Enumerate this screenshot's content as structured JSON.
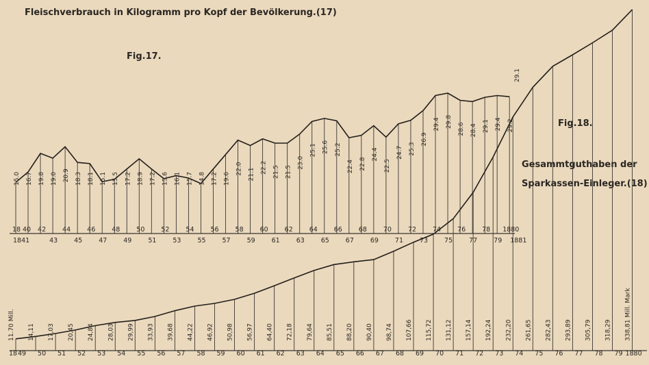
{
  "chart_data": [
    {
      "type": "line",
      "figure_label": "Fig.17.",
      "title": "Fleischverbrauch in Kilogramm pro Kopf der Bevölkerung.(17)",
      "x": [
        1840,
        1841,
        1842,
        1843,
        1844,
        1845,
        1846,
        1847,
        1848,
        1849,
        1850,
        1851,
        1852,
        1853,
        1854,
        1855,
        1856,
        1857,
        1858,
        1859,
        1860,
        1861,
        1862,
        1863,
        1864,
        1865,
        1866,
        1867,
        1868,
        1869,
        1870,
        1871,
        1872,
        1873,
        1874,
        1875,
        1876,
        1877,
        1878,
        1879,
        1880
      ],
      "values": [
        15.0,
        16.7,
        19.8,
        19.0,
        20.9,
        18.3,
        18.1,
        15.1,
        15.5,
        17.2,
        18.9,
        17.2,
        15.6,
        16.1,
        15.7,
        14.8,
        17.2,
        19.6,
        22.0,
        21.1,
        22.2,
        21.5,
        21.5,
        23.0,
        25.1,
        25.6,
        25.2,
        22.4,
        22.8,
        24.4,
        22.5,
        24.7,
        25.3,
        26.9,
        29.4,
        29.8,
        28.6,
        28.4,
        29.1,
        29.4,
        29.2
      ],
      "value_labels": [
        "15.0",
        "16.7",
        "19.8",
        "19.0",
        "20.9",
        "18.3",
        "18.1",
        "15.1",
        "15.5",
        "17.2",
        "18.9",
        "17.2",
        "15.6",
        "16.1",
        "15.7",
        "14.8",
        "17.2",
        "19.6",
        "22.0",
        "21.1",
        "22.2",
        "21.5",
        "21.5",
        "23.0",
        "25.1",
        "25.6",
        "25.2",
        "22.4",
        "22.8",
        "24.4",
        "22.5",
        "24.7",
        "25.3",
        "26.9",
        "29.4",
        "29.8",
        "28.6",
        "28.4",
        "29.1",
        "29.4",
        "29.2"
      ],
      "extra_label": "29.1",
      "tick_labels_upper": [
        "18",
        "40",
        "42",
        "44",
        "46",
        "48",
        "50",
        "52",
        "54",
        "56",
        "58",
        "60",
        "62",
        "64",
        "66",
        "68",
        "70",
        "72",
        "74",
        "76",
        "78",
        "18",
        "80"
      ],
      "tick_labels_lower": [
        "1841",
        "43",
        "45",
        "47",
        "49",
        "51",
        "53",
        "55",
        "57",
        "59",
        "61",
        "63",
        "65",
        "67",
        "69",
        "71",
        "73",
        "75",
        "77",
        "79",
        "1881"
      ],
      "ylim": [
        13,
        31
      ]
    },
    {
      "type": "line",
      "figure_label": "Fig.18.",
      "title": "Gesammtguthaben der Sparkassen-Einleger.(18)",
      "x": [
        1849,
        1850,
        1851,
        1852,
        1853,
        1854,
        1855,
        1856,
        1857,
        1858,
        1859,
        1860,
        1861,
        1862,
        1863,
        1864,
        1865,
        1866,
        1867,
        1868,
        1869,
        1870,
        1871,
        1872,
        1873,
        1874,
        1875,
        1876,
        1877,
        1878,
        1879,
        1880
      ],
      "values": [
        11.7,
        14.11,
        17.03,
        20.45,
        24.84,
        28.03,
        29.99,
        33.93,
        39.68,
        44.22,
        46.92,
        50.98,
        56.97,
        64.4,
        72.18,
        79.64,
        85.51,
        88.2,
        90.4,
        98.74,
        107.66,
        115.72,
        131.12,
        157.14,
        192.24,
        232.2,
        261.65,
        282.43,
        293.89,
        305.79,
        318.29,
        338.81
      ],
      "value_labels": [
        "11.70 Mill.",
        "14,11",
        "17,03",
        "20,45",
        "24,84",
        "28,03",
        "29,99",
        "33,93",
        "39,68",
        "44,22",
        "46,92",
        "50,98",
        "56,97",
        "64,40",
        "72,18",
        "79,64",
        "85,51",
        "88,20",
        "90,40",
        "98,74",
        "107,66",
        "115,72",
        "131,12",
        "157,14",
        "192,24",
        "232,20",
        "261,65",
        "282,43",
        "293,89",
        "305,79",
        "318,29",
        "338,81 Mill. Mark"
      ],
      "tick_labels": [
        "18",
        "49",
        "50",
        "51",
        "52",
        "53",
        "54",
        "55",
        "56",
        "57",
        "58",
        "59",
        "60",
        "61",
        "62",
        "63",
        "64",
        "65",
        "66",
        "67",
        "68",
        "69",
        "70",
        "71",
        "72",
        "73",
        "74",
        "75",
        "76",
        "77",
        "78",
        "79",
        "18",
        "80"
      ],
      "ylim": [
        0,
        350
      ]
    }
  ]
}
